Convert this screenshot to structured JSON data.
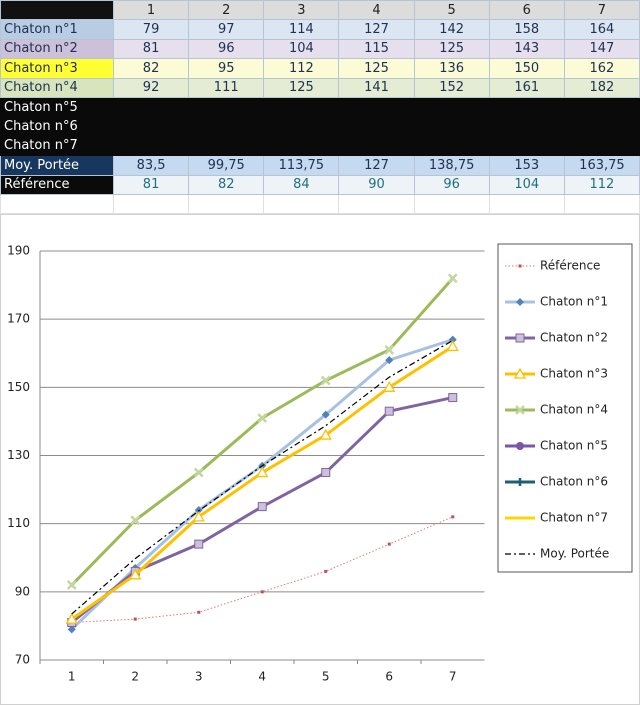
{
  "table": {
    "columns": [
      1,
      2,
      3,
      4,
      5,
      6,
      7
    ],
    "rows": [
      {
        "label": "Chaton n°1",
        "cells": [
          79,
          97,
          114,
          127,
          142,
          158,
          164
        ]
      },
      {
        "label": "Chaton n°2",
        "cells": [
          81,
          96,
          104,
          115,
          125,
          143,
          147
        ]
      },
      {
        "label": "Chaton n°3",
        "cells": [
          82,
          95,
          112,
          125,
          136,
          150,
          162
        ]
      },
      {
        "label": "Chaton n°4",
        "cells": [
          92,
          111,
          125,
          141,
          152,
          161,
          182
        ]
      },
      {
        "label": "Chaton n°5"
      },
      {
        "label": "Chaton n°6"
      },
      {
        "label": "Chaton n°7"
      },
      {
        "label": "Moy. Portée",
        "cells": [
          "83,5",
          "99,75",
          "113,75",
          127,
          "138,75",
          153,
          "163,75"
        ]
      },
      {
        "label": "Référence",
        "cells": [
          81,
          82,
          84,
          90,
          96,
          104,
          112
        ]
      }
    ]
  },
  "chart_data": {
    "type": "line",
    "categories": [
      1,
      2,
      3,
      4,
      5,
      6,
      7
    ],
    "ylim": [
      70,
      190
    ],
    "yticks": [
      70,
      90,
      110,
      130,
      150,
      170,
      190
    ],
    "grid": true,
    "legend": "right",
    "series": [
      {
        "name": "Référence",
        "color": "#d9797a",
        "marker": "square",
        "marker_color": "#c0504d",
        "dash": "dotted",
        "values": [
          81,
          82,
          84,
          90,
          96,
          104,
          112
        ]
      },
      {
        "name": "Chaton n°1",
        "color": "#a6c1e2",
        "marker": "diamond",
        "marker_color": "#4f81bd",
        "values": [
          79,
          97,
          114,
          127,
          142,
          158,
          164
        ]
      },
      {
        "name": "Chaton n°2",
        "color": "#8064a2",
        "marker": "square",
        "marker_color": "#ccc0da",
        "values": [
          81,
          96,
          104,
          115,
          125,
          143,
          147
        ]
      },
      {
        "name": "Chaton n°3",
        "color": "#ffc000",
        "marker": "triangle",
        "marker_color": "#ffffff",
        "values": [
          82,
          95,
          112,
          125,
          136,
          150,
          162
        ]
      },
      {
        "name": "Chaton n°4",
        "color": "#9bbb59",
        "marker": "x",
        "marker_color": "#c3d69b",
        "values": [
          92,
          111,
          125,
          141,
          152,
          161,
          182
        ]
      },
      {
        "name": "Chaton n°5",
        "color": "#7a56a8",
        "marker": "circle",
        "marker_color": "#7a56a8",
        "values": [
          null,
          null,
          null,
          null,
          null,
          null,
          null
        ]
      },
      {
        "name": "Chaton n°6",
        "color": "#1f5f73",
        "marker": "plus",
        "marker_color": "#1f5f73",
        "values": [
          null,
          null,
          null,
          null,
          null,
          null,
          null
        ]
      },
      {
        "name": "Chaton n°7",
        "color": "#ffd500",
        "marker": "none",
        "marker_color": "#ffd500",
        "values": [
          null,
          null,
          null,
          null,
          null,
          null,
          null
        ]
      },
      {
        "name": "Moy. Portée",
        "color": "#000000",
        "marker": "none",
        "marker_color": "#000000",
        "dash": "dashdot",
        "values": [
          83.5,
          99.75,
          113.75,
          127,
          138.75,
          153,
          163.75
        ]
      }
    ]
  }
}
